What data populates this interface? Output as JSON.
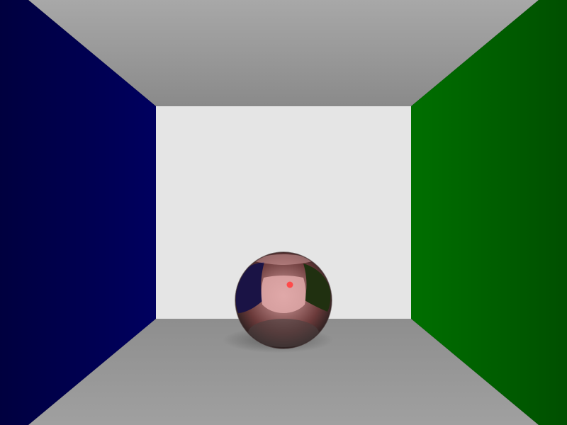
{
  "scene": {
    "description_free": true,
    "colors": {
      "left_wall_dark": "#00003f",
      "left_wall_light": "#00005f",
      "right_wall_dark": "#004f00",
      "right_wall_light": "#006f00",
      "ceiling_top": "#a8a8a8",
      "ceiling_bottom": "#8a8a8a",
      "back_wall": "#e5e5e5",
      "floor_near": "#a0a0a0",
      "floor_far": "#8e8e8e",
      "sphere_base": "#6b3a3a",
      "sphere_highlight": "#d9a3a3",
      "sphere_reflection_back": "#e0a9a9",
      "sphere_reflection_left": "#1a1345",
      "sphere_reflection_right": "#203010",
      "sphere_shadow": "#5a5a5a",
      "sphere_specular": "#ff4a4a"
    }
  }
}
